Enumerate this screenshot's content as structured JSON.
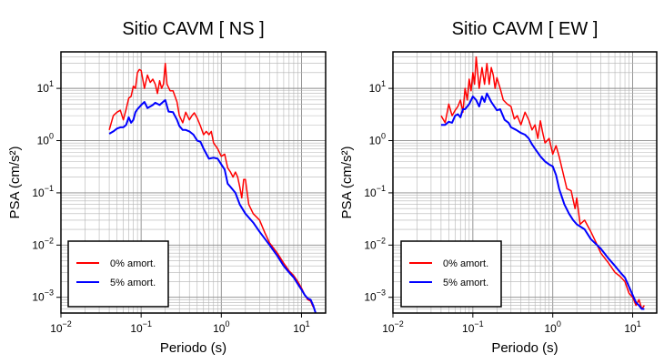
{
  "chart_data": [
    {
      "type": "line",
      "title": "Sitio CAVM [ NS ]",
      "xlabel": "Periodo (s)",
      "ylabel": "PSA (cm/s²)",
      "xscale": "log",
      "yscale": "log",
      "xlim": [
        0.01,
        20
      ],
      "ylim": [
        0.0005,
        50
      ],
      "grid": true,
      "legend_position": "bottom-left",
      "x_ticks": [
        {
          "value": 0.01,
          "base": "10",
          "exp": "−2"
        },
        {
          "value": 0.1,
          "base": "10",
          "exp": "−1"
        },
        {
          "value": 1,
          "base": "10",
          "exp": "0"
        },
        {
          "value": 10,
          "base": "10",
          "exp": "1"
        }
      ],
      "y_ticks": [
        {
          "value": 0.001,
          "base": "10",
          "exp": "−3"
        },
        {
          "value": 0.01,
          "base": "10",
          "exp": "−2"
        },
        {
          "value": 0.1,
          "base": "10",
          "exp": "−1"
        },
        {
          "value": 1,
          "base": "10",
          "exp": "0"
        },
        {
          "value": 10,
          "base": "10",
          "exp": "1"
        }
      ],
      "series": [
        {
          "name": "0% amort.",
          "color": "#ff0000",
          "x": [
            0.04,
            0.045,
            0.05,
            0.055,
            0.06,
            0.065,
            0.07,
            0.075,
            0.08,
            0.085,
            0.09,
            0.095,
            0.1,
            0.11,
            0.12,
            0.13,
            0.14,
            0.15,
            0.16,
            0.17,
            0.18,
            0.19,
            0.2,
            0.21,
            0.23,
            0.25,
            0.28,
            0.3,
            0.33,
            0.36,
            0.4,
            0.43,
            0.46,
            0.5,
            0.55,
            0.6,
            0.65,
            0.7,
            0.75,
            0.8,
            0.9,
            1.0,
            1.1,
            1.2,
            1.3,
            1.4,
            1.5,
            1.6,
            1.7,
            1.8,
            1.9,
            2.0,
            2.2,
            2.5,
            3.0,
            3.5,
            4.0,
            5.0,
            6.0,
            7.0,
            8.0,
            9.0,
            10.0,
            11.0,
            12.0,
            13.0,
            14.0
          ],
          "y": [
            1.6,
            3.0,
            3.5,
            3.8,
            2.5,
            4.0,
            6.5,
            7.0,
            11.0,
            10.0,
            20.0,
            23.0,
            22.0,
            10.0,
            18.0,
            13.0,
            15.0,
            12.0,
            8.0,
            14.0,
            10.0,
            12.0,
            30.0,
            12.0,
            9.0,
            9.0,
            5.5,
            3.0,
            2.2,
            3.5,
            2.5,
            3.0,
            3.4,
            2.7,
            1.9,
            1.3,
            1.5,
            1.3,
            1.5,
            0.9,
            0.7,
            0.5,
            0.55,
            0.3,
            0.25,
            0.2,
            0.25,
            0.2,
            0.13,
            0.08,
            0.18,
            0.18,
            0.06,
            0.04,
            0.03,
            0.017,
            0.011,
            0.007,
            0.0045,
            0.0032,
            0.0026,
            0.002,
            0.0015,
            0.0011,
            0.0009,
            0.00085,
            0.00065
          ]
        },
        {
          "name": "5% amort.",
          "color": "#0000ff",
          "x": [
            0.04,
            0.045,
            0.05,
            0.055,
            0.06,
            0.065,
            0.07,
            0.075,
            0.08,
            0.085,
            0.09,
            0.1,
            0.11,
            0.12,
            0.13,
            0.14,
            0.15,
            0.17,
            0.2,
            0.22,
            0.25,
            0.28,
            0.3,
            0.33,
            0.36,
            0.4,
            0.45,
            0.5,
            0.55,
            0.6,
            0.7,
            0.8,
            0.9,
            1.0,
            1.1,
            1.2,
            1.3,
            1.5,
            1.7,
            2.0,
            2.5,
            3.0,
            4.0,
            5.0,
            6.0,
            7.0,
            8.0,
            9.0,
            10.0,
            11.0,
            12.0,
            13.0,
            14.0,
            15.0
          ],
          "y": [
            1.35,
            1.5,
            1.7,
            1.8,
            1.8,
            2.0,
            2.8,
            2.2,
            2.5,
            3.5,
            4.0,
            4.8,
            5.5,
            4.2,
            4.5,
            4.8,
            5.3,
            4.8,
            6.0,
            3.6,
            3.5,
            2.5,
            1.9,
            1.6,
            1.6,
            1.5,
            1.3,
            1.0,
            0.95,
            0.7,
            0.45,
            0.47,
            0.45,
            0.35,
            0.28,
            0.15,
            0.13,
            0.1,
            0.06,
            0.04,
            0.027,
            0.018,
            0.01,
            0.0062,
            0.004,
            0.003,
            0.0024,
            0.0018,
            0.0014,
            0.0011,
            0.00095,
            0.0009,
            0.0007,
            0.0005
          ]
        }
      ]
    },
    {
      "type": "line",
      "title": "Sitio CAVM [ EW ]",
      "xlabel": "Periodo (s)",
      "ylabel": "PSA (cm/s²)",
      "xscale": "log",
      "yscale": "log",
      "xlim": [
        0.01,
        20
      ],
      "ylim": [
        0.0005,
        50
      ],
      "grid": true,
      "legend_position": "bottom-left",
      "x_ticks": [
        {
          "value": 0.01,
          "base": "10",
          "exp": "−2"
        },
        {
          "value": 0.1,
          "base": "10",
          "exp": "−1"
        },
        {
          "value": 1,
          "base": "10",
          "exp": "0"
        },
        {
          "value": 10,
          "base": "10",
          "exp": "1"
        }
      ],
      "y_ticks": [
        {
          "value": 0.001,
          "base": "10",
          "exp": "−3"
        },
        {
          "value": 0.01,
          "base": "10",
          "exp": "−2"
        },
        {
          "value": 0.1,
          "base": "10",
          "exp": "−1"
        },
        {
          "value": 1,
          "base": "10",
          "exp": "0"
        },
        {
          "value": 10,
          "base": "10",
          "exp": "1"
        }
      ],
      "series": [
        {
          "name": "0% amort.",
          "color": "#ff0000",
          "x": [
            0.04,
            0.045,
            0.05,
            0.055,
            0.06,
            0.065,
            0.07,
            0.075,
            0.08,
            0.085,
            0.09,
            0.095,
            0.1,
            0.105,
            0.11,
            0.12,
            0.13,
            0.14,
            0.15,
            0.16,
            0.17,
            0.18,
            0.19,
            0.2,
            0.22,
            0.24,
            0.27,
            0.3,
            0.33,
            0.36,
            0.4,
            0.45,
            0.5,
            0.55,
            0.6,
            0.65,
            0.7,
            0.75,
            0.8,
            0.9,
            1.0,
            1.1,
            1.2,
            1.3,
            1.5,
            1.7,
            1.9,
            2.0,
            2.2,
            2.5,
            3.0,
            3.5,
            4.0,
            5.0,
            6.0,
            7.0,
            8.0,
            9.0,
            10.0,
            11.0,
            12.0,
            13.0,
            14.0
          ],
          "y": [
            3.0,
            2.2,
            5.0,
            3.0,
            3.8,
            4.5,
            6.0,
            3.5,
            10.0,
            6.0,
            15.0,
            9.0,
            20.0,
            12.0,
            40.0,
            10.0,
            25.0,
            12.0,
            30.0,
            12.0,
            25.0,
            18.0,
            10.0,
            16.0,
            10.0,
            6.0,
            5.0,
            4.5,
            2.6,
            3.0,
            2.0,
            3.5,
            2.5,
            1.6,
            2.0,
            1.1,
            2.4,
            1.4,
            0.9,
            1.1,
            0.55,
            0.8,
            0.5,
            0.3,
            0.12,
            0.11,
            0.05,
            0.08,
            0.025,
            0.03,
            0.018,
            0.011,
            0.007,
            0.0045,
            0.003,
            0.0025,
            0.002,
            0.0012,
            0.001,
            0.0007,
            0.0009,
            0.0006,
            0.0007
          ]
        },
        {
          "name": "5% amort.",
          "color": "#0000ff",
          "x": [
            0.04,
            0.045,
            0.05,
            0.055,
            0.06,
            0.065,
            0.07,
            0.075,
            0.08,
            0.09,
            0.1,
            0.11,
            0.12,
            0.13,
            0.14,
            0.15,
            0.17,
            0.2,
            0.22,
            0.25,
            0.28,
            0.3,
            0.35,
            0.4,
            0.45,
            0.5,
            0.55,
            0.6,
            0.7,
            0.8,
            0.9,
            1.0,
            1.1,
            1.2,
            1.4,
            1.6,
            1.8,
            2.0,
            2.5,
            3.0,
            4.0,
            5.0,
            6.0,
            7.0,
            8.0,
            9.0,
            10.0,
            11.0,
            12.0,
            13.0,
            14.0
          ],
          "y": [
            2.0,
            2.0,
            2.3,
            2.2,
            3.0,
            3.2,
            2.8,
            4.0,
            4.0,
            5.0,
            7.0,
            6.0,
            4.5,
            7.0,
            5.5,
            8.0,
            5.5,
            3.8,
            4.0,
            2.5,
            2.2,
            1.8,
            1.6,
            1.4,
            1.3,
            1.1,
            0.85,
            0.7,
            0.5,
            0.4,
            0.35,
            0.32,
            0.22,
            0.12,
            0.06,
            0.04,
            0.03,
            0.025,
            0.02,
            0.013,
            0.0085,
            0.0055,
            0.004,
            0.003,
            0.0024,
            0.0016,
            0.0011,
            0.0008,
            0.0007,
            0.0006,
            0.0006
          ]
        }
      ]
    }
  ]
}
